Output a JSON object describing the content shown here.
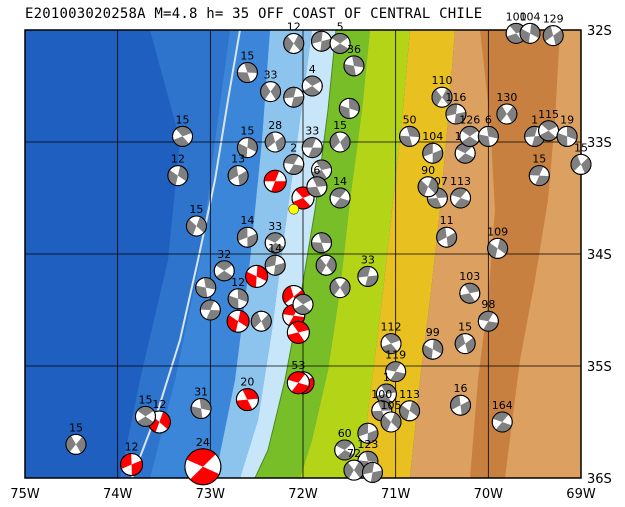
{
  "title": "E201003020258A  M=4.8  h= 35  OFF COAST OF CENTRAL CHILE",
  "lon_labels": [
    "75W",
    "74W",
    "73W",
    "72W",
    "71W",
    "70W",
    "69W"
  ],
  "lat_labels": [
    "32S",
    "33S",
    "34S",
    "35S",
    "36S"
  ],
  "extent": {
    "lon_min": -75,
    "lon_max": -69,
    "lat_min": -36,
    "lat_max": -32
  },
  "colors": {
    "deep_ocean": "#1f5fc0",
    "mid_ocean": "#3b86d8",
    "shelf": "#8cc4ee",
    "coast_shelf": "#c8e6fa",
    "lowland": "#78be28",
    "hills": "#c8d800",
    "foothills": "#e8b830",
    "mountains": "#dca060",
    "high_mountains": "#c88040",
    "trench_line": "#d8e4f0",
    "grid": "#000000",
    "target_event": "#ff0000",
    "event": "#000000",
    "epicenter": "#ffff00"
  },
  "events": [
    {
      "lon": -72.3,
      "lat": -33.35,
      "depth": "",
      "highlight": true
    },
    {
      "lon": -72.0,
      "lat": -33.5,
      "depth": "",
      "highlight": true
    },
    {
      "lon": -72.5,
      "lat": -34.2,
      "depth": "",
      "highlight": true
    },
    {
      "lon": -72.1,
      "lat": -34.38,
      "depth": "",
      "highlight": true
    },
    {
      "lon": -72.1,
      "lat": -34.55,
      "depth": "",
      "highlight": true
    },
    {
      "lon": -72.05,
      "lat": -34.7,
      "depth": "",
      "highlight": true
    },
    {
      "lon": -72.7,
      "lat": -34.6,
      "depth": "12",
      "highlight": true
    },
    {
      "lon": -72.0,
      "lat": -35.15,
      "depth": "",
      "highlight": true
    },
    {
      "lon": -72.05,
      "lat": -35.15,
      "depth": "53",
      "highlight": true
    },
    {
      "lon": -72.6,
      "lat": -35.3,
      "depth": "20",
      "highlight": true
    },
    {
      "lon": -73.55,
      "lat": -35.5,
      "depth": "12",
      "highlight": true
    },
    {
      "lon": -73.85,
      "lat": -35.88,
      "depth": "12",
      "highlight": true
    },
    {
      "lon": -73.08,
      "lat": -35.9,
      "depth": "24",
      "highlight": true
    },
    {
      "lon": -72.6,
      "lat": -32.38,
      "depth": "15"
    },
    {
      "lon": -72.1,
      "lat": -32.12,
      "depth": "12"
    },
    {
      "lon": -71.8,
      "lat": -32.1,
      "depth": ""
    },
    {
      "lon": -71.6,
      "lat": -32.12,
      "depth": "5"
    },
    {
      "lon": -71.45,
      "lat": -32.32,
      "depth": "36"
    },
    {
      "lon": -72.35,
      "lat": -32.55,
      "depth": "33"
    },
    {
      "lon": -72.1,
      "lat": -32.6,
      "depth": ""
    },
    {
      "lon": -71.9,
      "lat": -32.5,
      "depth": "4"
    },
    {
      "lon": -71.5,
      "lat": -32.7,
      "depth": ""
    },
    {
      "lon": -71.6,
      "lat": -33.0,
      "depth": "15"
    },
    {
      "lon": -71.9,
      "lat": -33.05,
      "depth": "33"
    },
    {
      "lon": -73.3,
      "lat": -32.95,
      "depth": "15"
    },
    {
      "lon": -72.6,
      "lat": -33.05,
      "depth": "15"
    },
    {
      "lon": -72.3,
      "lat": -33.0,
      "depth": "28"
    },
    {
      "lon": -72.1,
      "lat": -33.2,
      "depth": "2"
    },
    {
      "lon": -71.8,
      "lat": -33.25,
      "depth": ""
    },
    {
      "lon": -73.35,
      "lat": -33.3,
      "depth": "12"
    },
    {
      "lon": -72.7,
      "lat": -33.3,
      "depth": "13"
    },
    {
      "lon": -71.6,
      "lat": -33.5,
      "depth": "14"
    },
    {
      "lon": -71.85,
      "lat": -33.4,
      "depth": "6"
    },
    {
      "lon": -73.15,
      "lat": -33.75,
      "depth": "15"
    },
    {
      "lon": -72.6,
      "lat": -33.85,
      "depth": "14"
    },
    {
      "lon": -72.3,
      "lat": -33.9,
      "depth": "33"
    },
    {
      "lon": -71.8,
      "lat": -33.9,
      "depth": ""
    },
    {
      "lon": -71.75,
      "lat": -34.1,
      "depth": ""
    },
    {
      "lon": -72.3,
      "lat": -34.1,
      "depth": "14"
    },
    {
      "lon": -72.85,
      "lat": -34.15,
      "depth": "32"
    },
    {
      "lon": -73.05,
      "lat": -34.3,
      "depth": ""
    },
    {
      "lon": -71.6,
      "lat": -34.3,
      "depth": ""
    },
    {
      "lon": -71.3,
      "lat": -34.2,
      "depth": "33"
    },
    {
      "lon": -72.0,
      "lat": -34.45,
      "depth": ""
    },
    {
      "lon": -72.7,
      "lat": -34.4,
      "depth": "12"
    },
    {
      "lon": -72.45,
      "lat": -34.6,
      "depth": ""
    },
    {
      "lon": -73.0,
      "lat": -34.5,
      "depth": ""
    },
    {
      "lon": -71.05,
      "lat": -34.8,
      "depth": "112"
    },
    {
      "lon": -70.6,
      "lat": -34.85,
      "depth": "99"
    },
    {
      "lon": -70.25,
      "lat": -34.8,
      "depth": "15"
    },
    {
      "lon": -70.0,
      "lat": -34.6,
      "depth": "98"
    },
    {
      "lon": -70.2,
      "lat": -34.35,
      "depth": "103"
    },
    {
      "lon": -69.9,
      "lat": -33.95,
      "depth": "109"
    },
    {
      "lon": -70.45,
      "lat": -33.85,
      "depth": "11"
    },
    {
      "lon": -70.3,
      "lat": -33.5,
      "depth": "113"
    },
    {
      "lon": -70.55,
      "lat": -33.5,
      "depth": "107"
    },
    {
      "lon": -70.65,
      "lat": -33.4,
      "depth": "90"
    },
    {
      "lon": -70.6,
      "lat": -33.1,
      "depth": "104"
    },
    {
      "lon": -70.25,
      "lat": -33.1,
      "depth": "119"
    },
    {
      "lon": -70.85,
      "lat": -32.95,
      "depth": "50"
    },
    {
      "lon": -70.5,
      "lat": -32.6,
      "depth": "110"
    },
    {
      "lon": -70.35,
      "lat": -32.75,
      "depth": "116"
    },
    {
      "lon": -70.2,
      "lat": -32.95,
      "depth": "126"
    },
    {
      "lon": -70.0,
      "lat": -32.95,
      "depth": "6"
    },
    {
      "lon": -69.8,
      "lat": -32.75,
      "depth": "130"
    },
    {
      "lon": -69.5,
      "lat": -32.95,
      "depth": "1"
    },
    {
      "lon": -69.35,
      "lat": -32.9,
      "depth": "115"
    },
    {
      "lon": -69.15,
      "lat": -32.95,
      "depth": "19"
    },
    {
      "lon": -69.0,
      "lat": -33.2,
      "depth": "15"
    },
    {
      "lon": -69.45,
      "lat": -33.3,
      "depth": "15"
    },
    {
      "lon": -69.7,
      "lat": -32.03,
      "depth": "100"
    },
    {
      "lon": -69.55,
      "lat": -32.03,
      "depth": "104"
    },
    {
      "lon": -69.3,
      "lat": -32.05,
      "depth": "129"
    },
    {
      "lon": -71.0,
      "lat": -35.05,
      "depth": "119"
    },
    {
      "lon": -71.1,
      "lat": -35.25,
      "depth": "1"
    },
    {
      "lon": -70.85,
      "lat": -35.4,
      "depth": "113"
    },
    {
      "lon": -70.3,
      "lat": -35.35,
      "depth": "16"
    },
    {
      "lon": -69.85,
      "lat": -35.5,
      "depth": "164"
    },
    {
      "lon": -71.15,
      "lat": -35.4,
      "depth": "100"
    },
    {
      "lon": -71.05,
      "lat": -35.5,
      "depth": "105"
    },
    {
      "lon": -71.3,
      "lat": -35.6,
      "depth": ""
    },
    {
      "lon": -71.55,
      "lat": -35.75,
      "depth": "60"
    },
    {
      "lon": -71.3,
      "lat": -35.85,
      "depth": "123"
    },
    {
      "lon": -71.45,
      "lat": -35.93,
      "depth": "72"
    },
    {
      "lon": -71.25,
      "lat": -35.95,
      "depth": ""
    },
    {
      "lon": -73.7,
      "lat": -35.45,
      "depth": "15"
    },
    {
      "lon": -73.1,
      "lat": -35.38,
      "depth": "31"
    },
    {
      "lon": -74.45,
      "lat": -35.7,
      "depth": "15"
    }
  ],
  "epicenter": {
    "lon": -72.1,
    "lat": -33.6
  }
}
